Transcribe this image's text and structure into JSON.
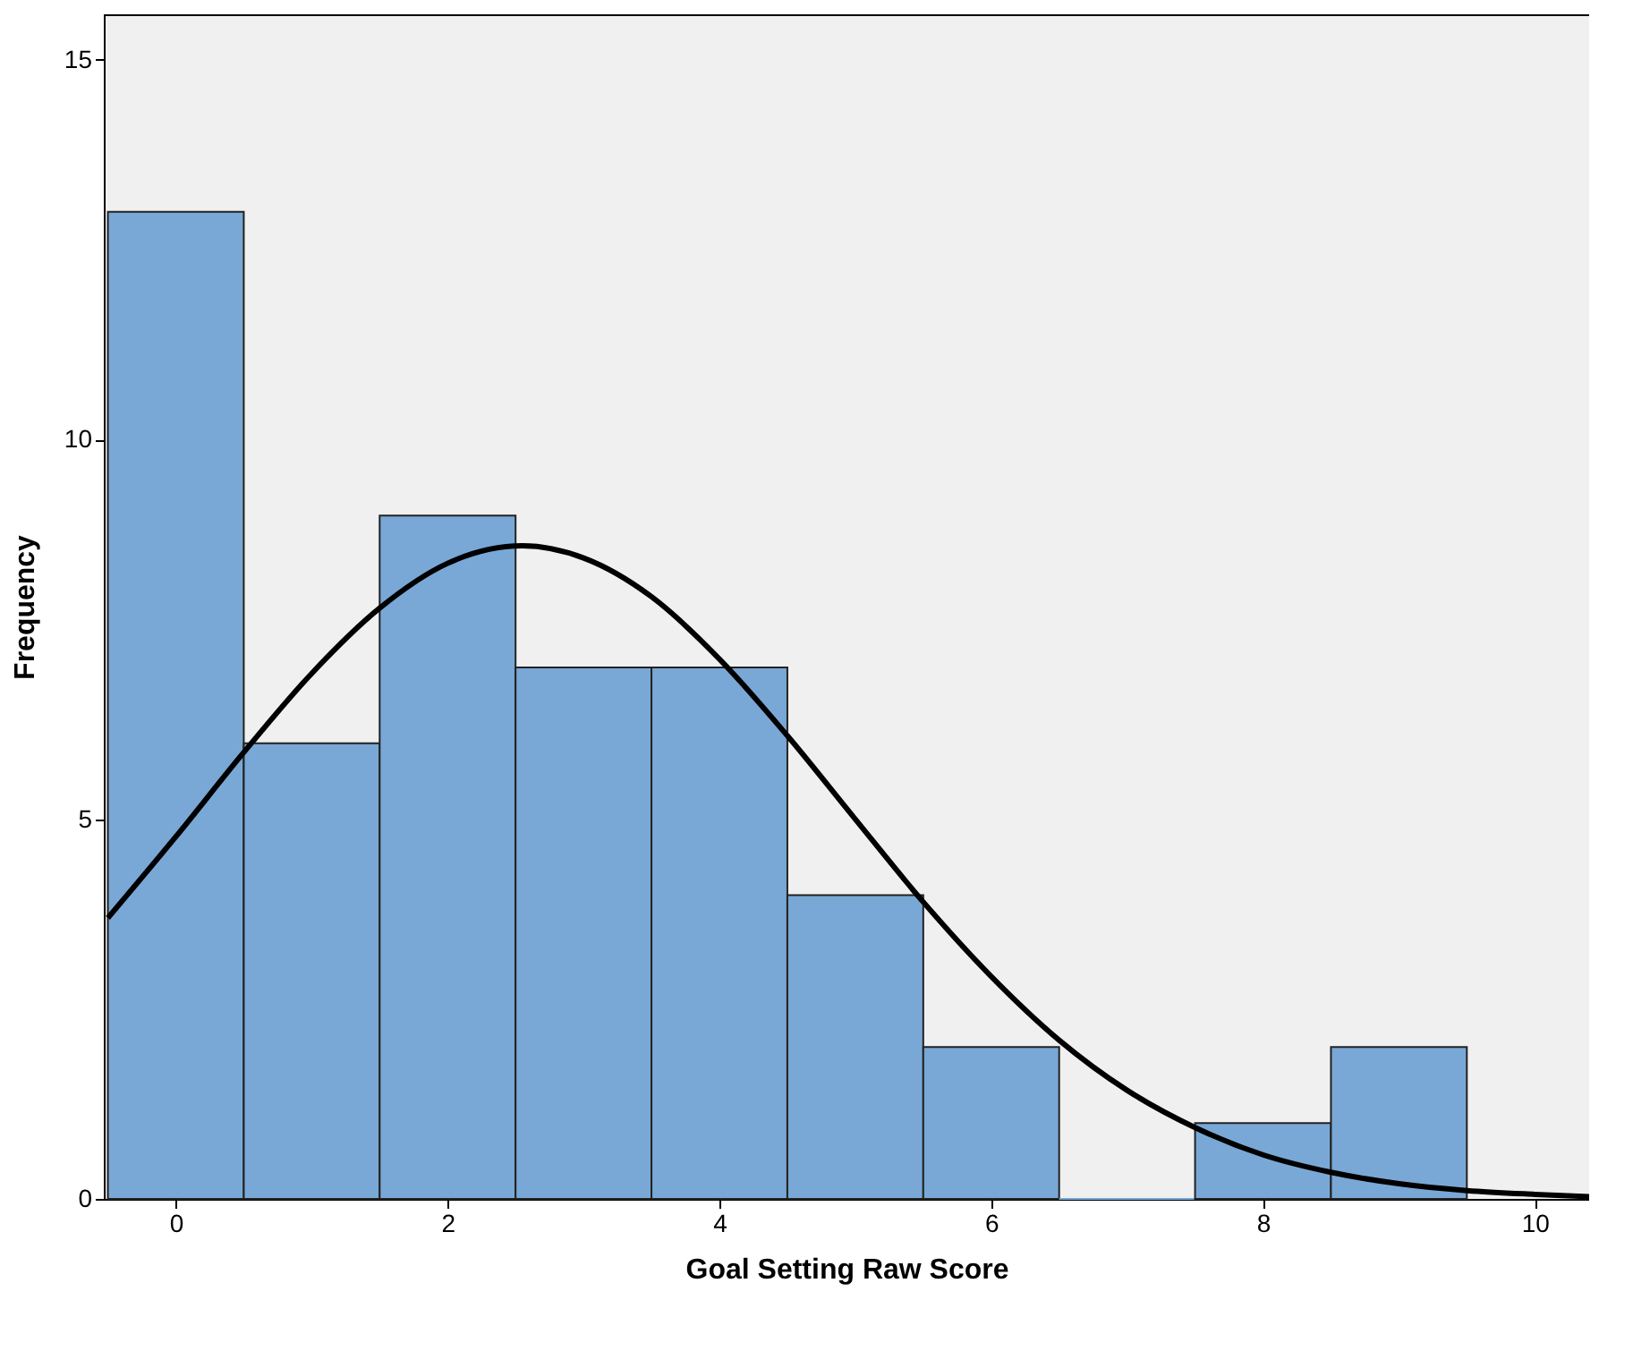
{
  "chart_data": {
    "type": "histogram",
    "xlabel": "Goal Setting Raw Score",
    "ylabel": "Frequency",
    "bins": [
      -0.5,
      0.5,
      1.5,
      2.5,
      3.5,
      4.5,
      5.5,
      6.5,
      7.5,
      8.5,
      9.5
    ],
    "values": [
      13,
      6,
      9,
      7,
      7,
      4,
      2,
      0,
      1,
      2
    ],
    "color": "#79a8d6",
    "series": [
      {
        "type": "line",
        "color": "#000000",
        "x": [
          -0.5,
          0,
          0.5,
          1,
          1.5,
          2,
          2.55,
          3,
          3.5,
          4,
          4.5,
          5,
          5.5,
          6,
          6.5,
          7,
          7.5,
          8,
          8.5,
          9,
          9.5,
          10,
          10.4
        ],
        "values": [
          3.7,
          4.77,
          5.88,
          6.92,
          7.78,
          8.37,
          8.6,
          8.44,
          7.93,
          7.11,
          6.1,
          5.0,
          3.91,
          2.93,
          2.09,
          1.43,
          0.94,
          0.58,
          0.35,
          0.2,
          0.11,
          0.06,
          0.03
        ]
      }
    ],
    "xlim": [
      -0.53,
      10.4
    ],
    "xticks": [
      0,
      2,
      4,
      6,
      8,
      10
    ],
    "ylim": [
      0,
      15.6
    ],
    "yticks": [
      0,
      5,
      10,
      15
    ],
    "grid": false,
    "legend": false
  }
}
